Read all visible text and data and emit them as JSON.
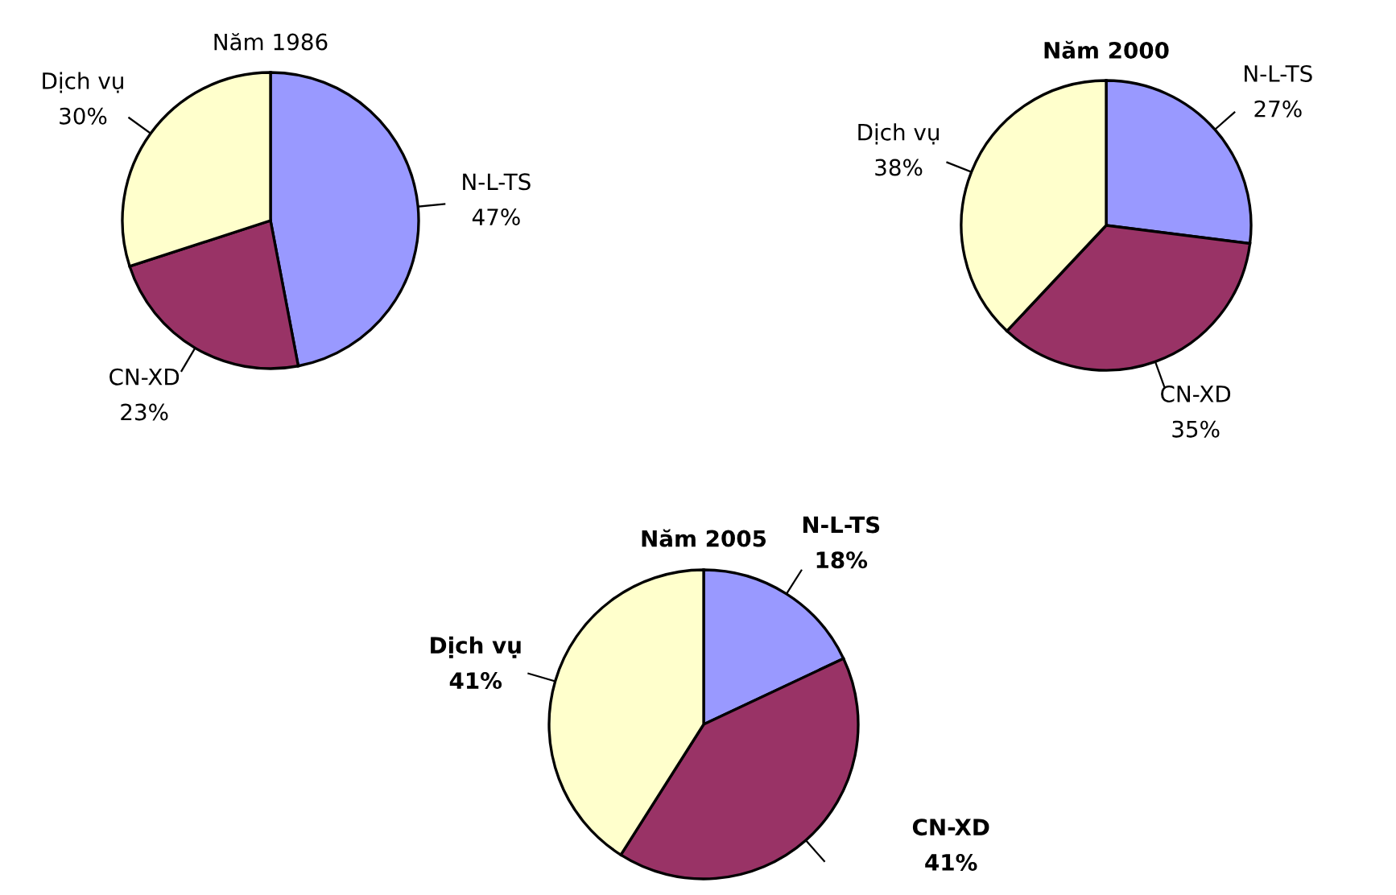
{
  "chart_data": [
    {
      "type": "pie",
      "title": "Năm 1986",
      "categories": [
        "N-L-TS",
        "CN-XD",
        "Dịch vụ"
      ],
      "values": [
        47,
        23,
        30
      ],
      "colors": [
        "#9999ff",
        "#993366",
        "#ffffcc"
      ],
      "value_labels": [
        "47%",
        "23%",
        "30%"
      ]
    },
    {
      "type": "pie",
      "title": "Năm 2000",
      "categories": [
        "N-L-TS",
        "CN-XD",
        "Dịch vụ"
      ],
      "values": [
        27,
        35,
        38
      ],
      "colors": [
        "#9999ff",
        "#993366",
        "#ffffcc"
      ],
      "value_labels": [
        "27%",
        "35%",
        "38%"
      ]
    },
    {
      "type": "pie",
      "title": "Năm 2005",
      "categories": [
        "N-L-TS",
        "CN-XD",
        "Dịch vụ"
      ],
      "values": [
        18,
        41,
        41
      ],
      "colors": [
        "#9999ff",
        "#993366",
        "#ffffcc"
      ],
      "value_labels": [
        "18%",
        "41%",
        "41%"
      ]
    }
  ]
}
